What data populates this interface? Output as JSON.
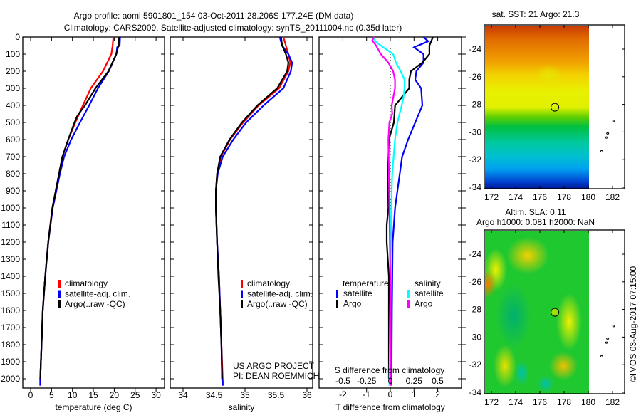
{
  "title_line1": "Argo profile: aoml 5901801_154 03-Oct-2011 28.206S 177.24E (DM data)",
  "title_line2": "Climatology: CARS2009. Satellite-adjusted climatology: synTS_20111004.nc (0.35d later)",
  "credit": "US ARGO PROJECT",
  "pi": "PI: DEAN ROEMMICH",
  "copyright": "©IMOS 03-Aug-2017 07:15:00",
  "colors": {
    "climatology": "#ff0000",
    "satellite": "#0000ff",
    "argo": "#000000",
    "s_satellite": "#00ffff",
    "s_argo": "#ff00ff"
  },
  "chart_data": [
    {
      "type": "line",
      "title": "",
      "xlabel": "temperature (deg C)",
      "ylabel": "",
      "xlim": [
        -2,
        32
      ],
      "ylim": [
        2040,
        0
      ],
      "xticks": [
        "0",
        "5",
        "10",
        "15",
        "20",
        "25",
        "30"
      ],
      "yticks": [
        "0",
        "100",
        "200",
        "300",
        "400",
        "500",
        "600",
        "700",
        "800",
        "900",
        "1000",
        "1100",
        "1200",
        "1300",
        "1400",
        "1500",
        "1600",
        "1700",
        "1800",
        "1900",
        "2000"
      ],
      "legend": [
        "climatology",
        "satellite-adj. clim.",
        "Argo(..raw -QC)"
      ],
      "series": [
        {
          "name": "climatology",
          "color": "#ff0000",
          "depth": [
            0,
            50,
            100,
            200,
            300,
            400,
            500,
            600,
            700,
            800,
            1000,
            1200,
            1400,
            1600,
            1800,
            2000,
            2040
          ],
          "values": [
            19.8,
            19.6,
            19.3,
            17.3,
            14.4,
            12.5,
            10.7,
            9.0,
            7.6,
            6.8,
            5.2,
            4.2,
            3.5,
            2.9,
            2.6,
            2.3,
            2.3
          ]
        },
        {
          "name": "satellite-adj. clim.",
          "color": "#0000ff",
          "depth": [
            0,
            50,
            60,
            100,
            200,
            300,
            400,
            500,
            600,
            700,
            800,
            1000,
            1200,
            1400,
            1600,
            1800,
            2000,
            2040
          ],
          "values": [
            21.4,
            21.3,
            20.7,
            20.5,
            18.7,
            16.1,
            14.0,
            11.8,
            9.7,
            8.0,
            7.0,
            5.3,
            4.2,
            3.5,
            2.9,
            2.6,
            2.3,
            2.3
          ]
        },
        {
          "name": "Argo(..raw -QC)",
          "color": "#000000",
          "depth": [
            0,
            50,
            100,
            200,
            300,
            400,
            460,
            500,
            600,
            700,
            800,
            1000,
            1200,
            1400,
            1600,
            1800,
            2000
          ],
          "values": [
            21.2,
            21.0,
            20.5,
            18.6,
            15.5,
            13.0,
            11.2,
            10.5,
            9.0,
            7.6,
            6.8,
            5.2,
            4.2,
            3.5,
            2.9,
            2.6,
            2.3
          ]
        }
      ]
    },
    {
      "type": "line",
      "xlabel": "salinity",
      "xlim": [
        33.8,
        36.1
      ],
      "ylim": [
        2040,
        0
      ],
      "xticks": [
        "34",
        "34.5",
        "35",
        "35.5",
        "36"
      ],
      "legend": [
        "climatology",
        "satellite-adj. clim.",
        "Argo(..raw -QC)"
      ],
      "series": [
        {
          "name": "climatology",
          "color": "#ff0000",
          "depth": [
            0,
            50,
            100,
            150,
            200,
            300,
            400,
            500,
            600,
            700,
            800,
            900,
            1000,
            1200,
            1400,
            1600,
            1800,
            2000,
            2040
          ],
          "values": [
            35.62,
            35.66,
            35.7,
            35.73,
            35.7,
            35.55,
            35.22,
            34.97,
            34.76,
            34.61,
            34.55,
            34.53,
            34.53,
            34.55,
            34.58,
            34.6,
            34.62,
            34.64,
            34.65
          ]
        },
        {
          "name": "satellite-adj. clim.",
          "color": "#0000ff",
          "depth": [
            0,
            50,
            100,
            150,
            200,
            300,
            400,
            500,
            600,
            700,
            800,
            900,
            1000,
            1200,
            1400,
            1600,
            1800,
            2000,
            2040
          ],
          "values": [
            35.56,
            35.6,
            35.7,
            35.76,
            35.74,
            35.62,
            35.3,
            35.02,
            34.81,
            34.64,
            34.56,
            34.53,
            34.53,
            34.55,
            34.58,
            34.6,
            34.62,
            34.63,
            34.64
          ]
        },
        {
          "name": "Argo(..raw -QC)",
          "color": "#000000",
          "depth": [
            0,
            50,
            100,
            150,
            200,
            300,
            400,
            500,
            600,
            700,
            800,
            900,
            1000,
            1200,
            1400,
            1600,
            1800,
            2000
          ],
          "values": [
            35.58,
            35.6,
            35.66,
            35.7,
            35.68,
            35.52,
            35.2,
            34.95,
            34.75,
            34.6,
            34.55,
            34.53,
            34.53,
            34.55,
            34.57,
            34.6,
            34.62,
            34.63
          ]
        }
      ]
    },
    {
      "type": "line",
      "xlabel": "T difference from climatology",
      "x2label": "S difference from climatology",
      "xlim": [
        -3,
        3
      ],
      "ylim": [
        2040,
        0
      ],
      "xticks": [
        "-2",
        "-1",
        "0",
        "1",
        "2"
      ],
      "x2ticks": [
        "-0.5",
        "-0.25",
        "0",
        "0.25",
        "0.5"
      ],
      "legend_groups": [
        {
          "title": "temperature",
          "items": [
            "satellite",
            "Argo"
          ]
        },
        {
          "title": "salinity",
          "items": [
            "satellite",
            "Argo"
          ]
        }
      ],
      "series": [
        {
          "name": "temperature satellite",
          "color": "#0000ff",
          "axis": "T",
          "depth": [
            0,
            25,
            60,
            100,
            150,
            200,
            250,
            300,
            400,
            500,
            600,
            700,
            800,
            1000,
            1200,
            1600,
            2040
          ],
          "values": [
            1.4,
            1.6,
            1.0,
            1.4,
            1.4,
            1.1,
            1.05,
            1.3,
            1.35,
            1.05,
            0.75,
            0.5,
            0.4,
            0.2,
            0.1,
            0.07,
            0.05
          ]
        },
        {
          "name": "temperature Argo",
          "color": "#000000",
          "axis": "T",
          "depth": [
            0,
            50,
            100,
            150,
            200,
            250,
            300,
            350,
            400,
            500,
            600,
            800,
            1000,
            1100,
            1200,
            1400,
            2000
          ],
          "values": [
            1.8,
            1.65,
            1.65,
            1.35,
            0.87,
            0.8,
            0.8,
            0.5,
            0.2,
            0.15,
            -0.06,
            -0.1,
            -0.08,
            -0.15,
            -0.15,
            -0.06,
            -0.06
          ]
        },
        {
          "name": "salinity satellite",
          "color": "#00ffff",
          "axis": "S",
          "depth": [
            0,
            25,
            50,
            100,
            150,
            200,
            250,
            300,
            350,
            400,
            500,
            600,
            800,
            1000,
            2040
          ],
          "values": [
            -0.17,
            -0.16,
            -0.1,
            0.03,
            0.06,
            0.11,
            0.15,
            0.15,
            0.14,
            0.12,
            0.075,
            0.05,
            0.02,
            0.01,
            -0.01
          ]
        },
        {
          "name": "salinity Argo",
          "color": "#ff00ff",
          "axis": "S",
          "depth": [
            0,
            20,
            50,
            100,
            150,
            200,
            250,
            300,
            400,
            450,
            500,
            600,
            800,
            1000,
            1400,
            2040
          ],
          "values": [
            -0.17,
            -0.19,
            -0.15,
            -0.1,
            -0.02,
            0.03,
            0.05,
            0.05,
            0.015,
            0.02,
            -0.01,
            -0.02,
            -0.015,
            -0.01,
            0.0,
            0.005
          ]
        }
      ]
    },
    {
      "type": "heatmap",
      "title": "sat. SST: 21 Argo: 21.3",
      "xticks": [
        "172",
        "174",
        "176",
        "178",
        "180",
        "182"
      ],
      "yticks": [
        "-24",
        "-26",
        "-28",
        "-30",
        "-32",
        "-34"
      ],
      "marker": {
        "lon": 177.24,
        "lat": -28.206
      }
    },
    {
      "type": "heatmap",
      "title": "Altim. SLA: 0.11",
      "subtitle": "Argo h1000: 0.081 h2000: NaN",
      "xticks": [
        "172",
        "174",
        "176",
        "178",
        "180",
        "182"
      ],
      "yticks": [
        "-24",
        "-26",
        "-28",
        "-30",
        "-32",
        "-34"
      ],
      "marker": {
        "lon": 177.24,
        "lat": -28.206
      }
    }
  ]
}
